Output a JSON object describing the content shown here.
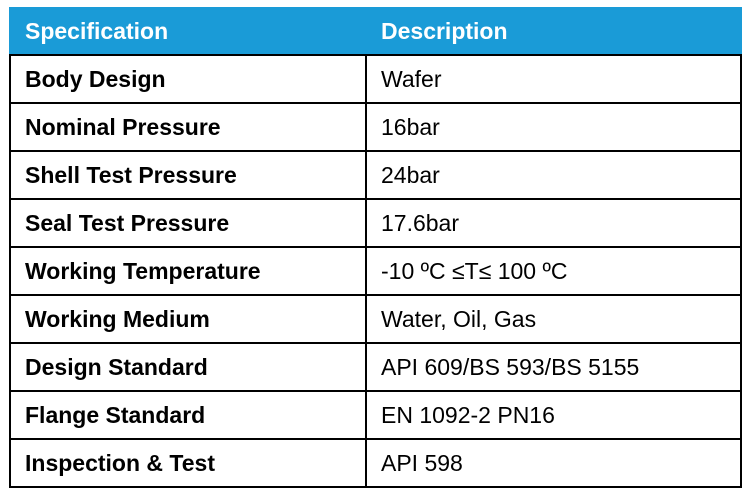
{
  "table": {
    "columns": [
      "Specification",
      "Description"
    ],
    "rows": [
      [
        "Body Design",
        "Wafer"
      ],
      [
        "Nominal Pressure",
        "16bar"
      ],
      [
        "Shell Test Pressure",
        "24bar"
      ],
      [
        "Seal Test Pressure",
        "17.6bar"
      ],
      [
        "Working Temperature",
        "-10 ºC ≤T≤ 100 ºC"
      ],
      [
        "Working Medium",
        "Water, Oil, Gas"
      ],
      [
        "Design Standard",
        "API 609/BS 593/BS 5155"
      ],
      [
        "Flange Standard",
        "EN 1092-2 PN16"
      ],
      [
        "Inspection & Test",
        "API 598"
      ]
    ]
  }
}
